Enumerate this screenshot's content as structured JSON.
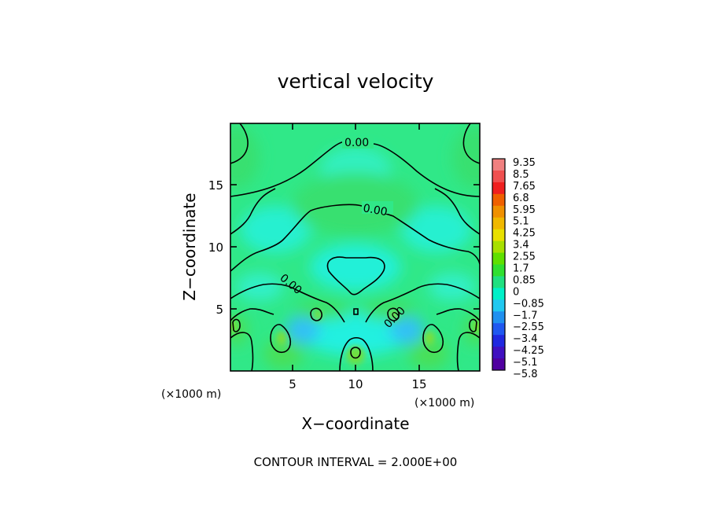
{
  "chart_data": {
    "type": "heatmap",
    "title": "vertical velocity",
    "xlabel": "X−coordinate",
    "ylabel": "Z−coordinate",
    "x_unit": "(×1000 m)",
    "y_unit": "(×1000 m)",
    "xlim": [
      0,
      19.5
    ],
    "ylim": [
      0,
      19.5
    ],
    "x_ticks": [
      5,
      10,
      15
    ],
    "y_ticks": [
      5,
      10,
      15
    ],
    "contour_labels": [
      "0.00",
      "0.00",
      "0.00",
      "0.00"
    ],
    "contour_interval_text": "CONTOUR INTERVAL = 2.000E+00",
    "colorbar": {
      "labels": [
        "9.35",
        "8.5",
        "7.65",
        "6.8",
        "5.95",
        "5.1",
        "4.25",
        "3.4",
        "2.55",
        "1.7",
        "0.85",
        "0",
        "−0.85",
        "−1.7",
        "−2.55",
        "−3.4",
        "−4.25",
        "−5.1",
        "−5.8"
      ],
      "colors": [
        "#f08080",
        "#f05050",
        "#f02020",
        "#f06000",
        "#f09000",
        "#f0b800",
        "#e8e000",
        "#a8e000",
        "#60e000",
        "#30e030",
        "#20e080",
        "#00f0c8",
        "#20c8f0",
        "#2090f0",
        "#2058f0",
        "#2028e0",
        "#4010c0",
        "#5000a0"
      ]
    },
    "field_background_color": "#30e888"
  }
}
